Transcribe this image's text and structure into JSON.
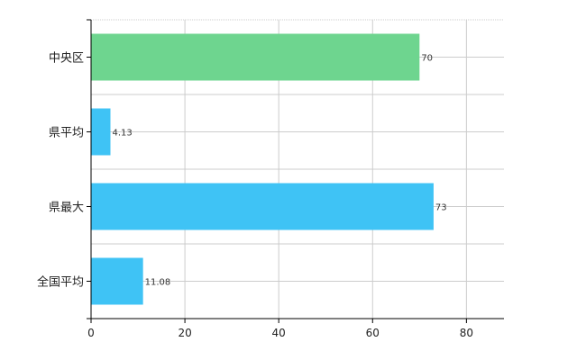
{
  "chart_data": {
    "type": "bar",
    "orientation": "horizontal",
    "categories": [
      "中央区",
      "県平均",
      "県最大",
      "全国平均"
    ],
    "values": [
      70,
      4.13,
      73,
      11.08
    ],
    "value_labels": [
      "70",
      "4.13",
      "73",
      "11.08"
    ],
    "bar_colors": [
      "#6ed58f",
      "#3fc3f5",
      "#3fc3f5",
      "#3fc3f5"
    ],
    "xlim": [
      0,
      88
    ],
    "xticks": [
      0,
      20,
      40,
      60,
      80
    ],
    "xtick_labels": [
      "0",
      "20",
      "40",
      "60",
      "80"
    ],
    "grid": true,
    "title": "",
    "xlabel": "",
    "ylabel": ""
  }
}
